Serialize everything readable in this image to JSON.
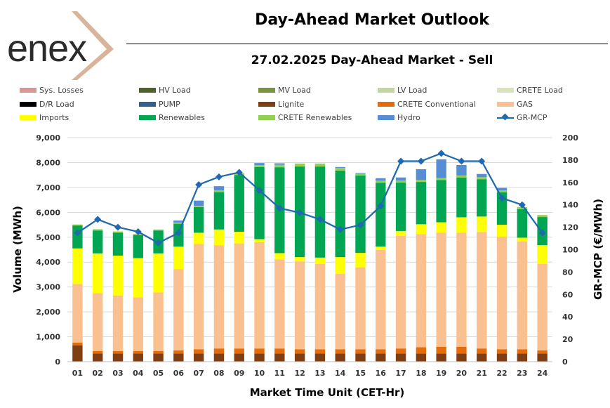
{
  "brand": {
    "name": "enex",
    "accent": "#d9b49a"
  },
  "header": {
    "title": "Day-Ahead Market Outlook",
    "subtitle": "27.02.2025  Day-Ahead Market - Sell"
  },
  "chart_data": {
    "type": "bar",
    "stacked": true,
    "title": "27.02.2025  Day-Ahead Market - Sell",
    "xlabel": "Market Time Unit (CET-Hr)",
    "ylabel": "Volume (MWh)",
    "y2label": "GR-MCP (€/MWh)",
    "ylim": [
      0,
      9000
    ],
    "y2lim": [
      0,
      200
    ],
    "yticks": [
      "0",
      "1,000",
      "2,000",
      "3,000",
      "4,000",
      "5,000",
      "6,000",
      "7,000",
      "8,000",
      "9,000"
    ],
    "y2ticks": [
      "0",
      "20",
      "40",
      "60",
      "80",
      "100",
      "120",
      "140",
      "160",
      "180",
      "200"
    ],
    "categories": [
      "01",
      "02",
      "03",
      "04",
      "05",
      "06",
      "07",
      "08",
      "09",
      "10",
      "11",
      "12",
      "13",
      "14",
      "15",
      "16",
      "17",
      "18",
      "19",
      "20",
      "21",
      "22",
      "23",
      "24"
    ],
    "legend": [
      {
        "name": "Sys. Losses",
        "color": "#d99694"
      },
      {
        "name": "HV Load",
        "color": "#4f6228"
      },
      {
        "name": "MV Load",
        "color": "#77933c"
      },
      {
        "name": "LV Load",
        "color": "#c3d69b"
      },
      {
        "name": "CRETE Load",
        "color": "#d7e4bd"
      },
      {
        "name": "D/R Load",
        "color": "#000000"
      },
      {
        "name": "PUMP",
        "color": "#335f91"
      },
      {
        "name": "Lignite",
        "color": "#7f3f12"
      },
      {
        "name": "CRETE Conventional",
        "color": "#e46c0a"
      },
      {
        "name": "GAS",
        "color": "#fac090"
      },
      {
        "name": "Imports",
        "color": "#ffff00"
      },
      {
        "name": "Renewables",
        "color": "#00a651"
      },
      {
        "name": "CRETE Renewables",
        "color": "#92d050"
      },
      {
        "name": "Hydro",
        "color": "#558ed5"
      },
      {
        "name": "GR-MCP",
        "color": "#1f69b0",
        "kind": "line"
      }
    ],
    "series": [
      {
        "name": "Lignite",
        "color": "#7f3f12",
        "values": [
          650,
          330,
          330,
          330,
          330,
          330,
          330,
          330,
          330,
          330,
          330,
          330,
          330,
          330,
          330,
          330,
          330,
          330,
          330,
          330,
          330,
          330,
          330,
          330
        ]
      },
      {
        "name": "CRETE Conventional",
        "color": "#e46c0a",
        "values": [
          120,
          100,
          100,
          100,
          100,
          120,
          170,
          200,
          200,
          200,
          200,
          170,
          170,
          170,
          170,
          170,
          200,
          250,
          270,
          270,
          200,
          170,
          170,
          120
        ]
      },
      {
        "name": "GAS",
        "color": "#fac090",
        "values": [
          2350,
          2320,
          2230,
          2150,
          2350,
          3270,
          4230,
          4150,
          4220,
          4270,
          3580,
          3530,
          3430,
          3030,
          3290,
          3990,
          4520,
          4540,
          4580,
          4580,
          4680,
          4520,
          4330,
          3480
        ]
      },
      {
        "name": "Imports",
        "color": "#ffff00",
        "values": [
          1430,
          1600,
          1600,
          1580,
          1570,
          900,
          450,
          630,
          470,
          120,
          250,
          170,
          250,
          670,
          580,
          130,
          200,
          400,
          420,
          620,
          620,
          480,
          150,
          750
        ]
      },
      {
        "name": "Renewables",
        "color": "#00a651",
        "values": [
          920,
          920,
          920,
          920,
          920,
          920,
          1030,
          1500,
          2280,
          2900,
          3450,
          3640,
          3660,
          3480,
          3110,
          2570,
          1950,
          1700,
          1700,
          1600,
          1500,
          1300,
          1150,
          1130
        ]
      },
      {
        "name": "CRETE Renewables",
        "color": "#92d050",
        "values": [
          40,
          50,
          50,
          50,
          40,
          50,
          50,
          70,
          80,
          80,
          100,
          120,
          120,
          100,
          80,
          80,
          80,
          80,
          80,
          80,
          80,
          80,
          80,
          80
        ]
      },
      {
        "name": "Hydro",
        "color": "#558ed5",
        "values": [
          0,
          0,
          0,
          0,
          0,
          80,
          210,
          170,
          0,
          80,
          60,
          0,
          0,
          40,
          20,
          100,
          120,
          430,
          750,
          420,
          130,
          100,
          0,
          0
        ]
      }
    ],
    "line": {
      "name": "GR-MCP",
      "color": "#1f69b0",
      "axis": "secondary",
      "values": [
        115,
        127,
        120,
        116,
        106,
        115,
        158,
        165,
        169,
        153,
        137,
        133,
        127,
        118,
        122,
        139,
        179,
        179,
        186,
        179,
        179,
        146,
        140,
        115
      ]
    }
  }
}
